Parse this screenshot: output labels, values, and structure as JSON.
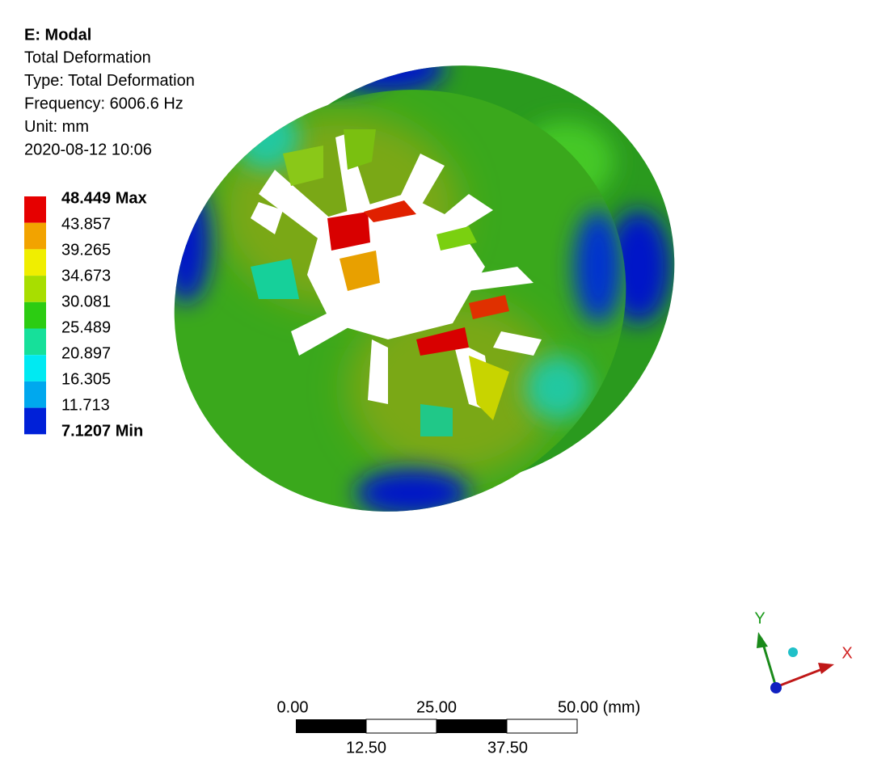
{
  "header": {
    "title": "E: Modal",
    "lines": [
      "Total Deformation",
      "Type: Total Deformation",
      "Frequency: 6006.6 Hz",
      "Unit: mm",
      "2020-08-12 10:06"
    ]
  },
  "legend": {
    "labels": [
      "48.449 Max",
      "43.857",
      "39.265",
      "34.673",
      "30.081",
      "25.489",
      "20.897",
      "16.305",
      "11.713",
      "7.1207 Min"
    ],
    "colors": [
      "#e60000",
      "#f2a300",
      "#f0ee00",
      "#a8de00",
      "#2ccc12",
      "#16e09a",
      "#00eaf2",
      "#00a8ee",
      "#0020d8"
    ]
  },
  "scale_bar": {
    "top": [
      "0.00",
      "25.00",
      "50.00 (mm)"
    ],
    "bottom": [
      "12.50",
      "37.50"
    ]
  },
  "triad": {
    "y": "Y",
    "x": "X"
  }
}
